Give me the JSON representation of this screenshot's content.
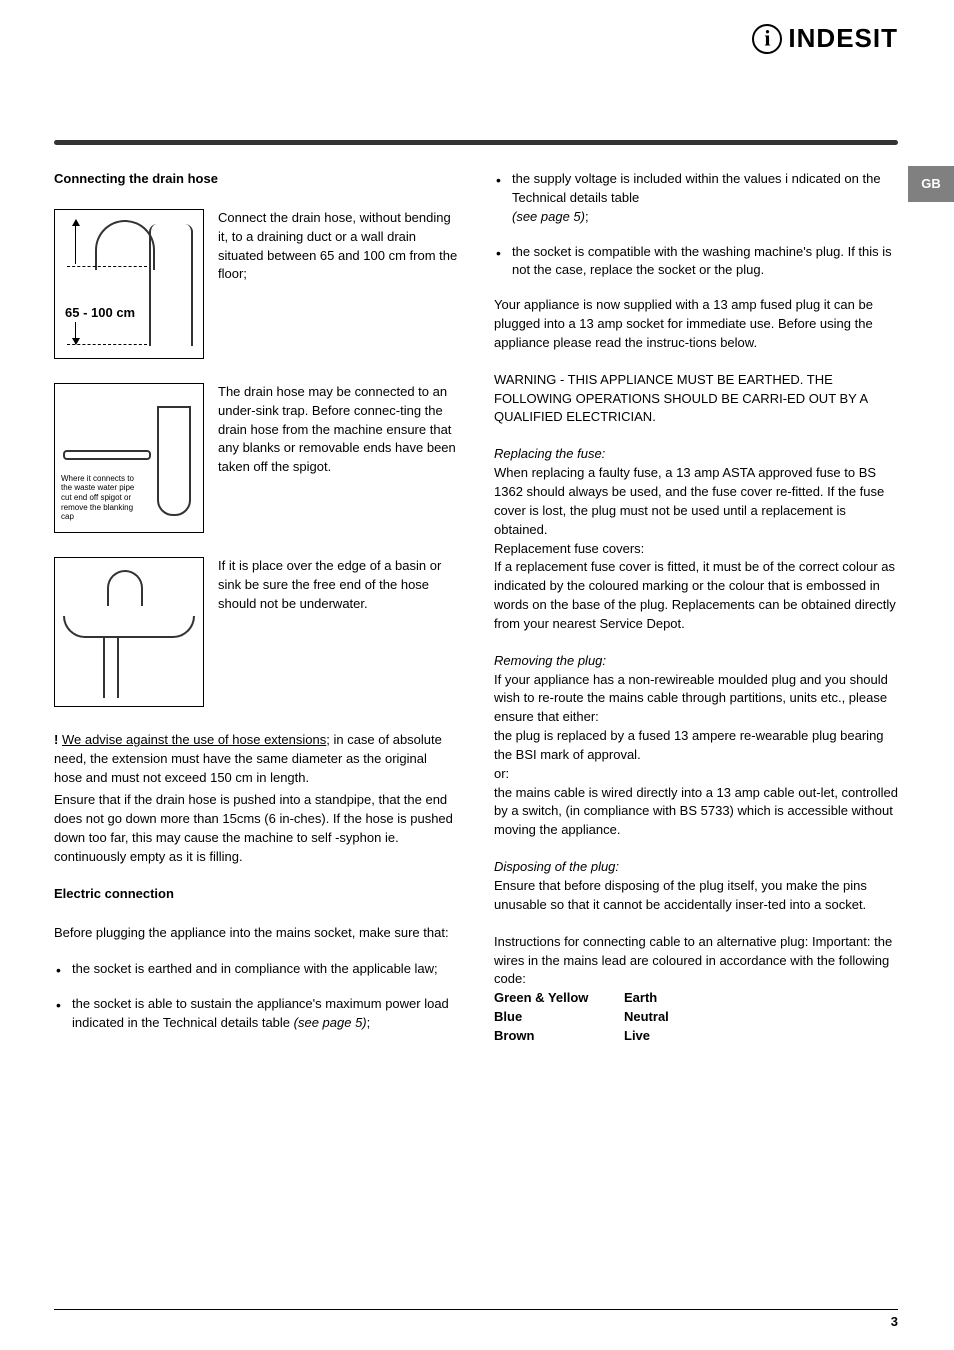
{
  "logo": {
    "text": "INDESIT"
  },
  "language_tab": "GB",
  "page_number": "3",
  "left": {
    "heading1": "Connecting the drain hose",
    "fig1_label": "65 - 100 cm",
    "para1": "Connect the drain hose, without bending it, to a draining duct or a wall drain situated between 65 and 100 cm from the floor;",
    "fig2_caption": "Where it connects to the waste water pipe cut end off spigot or remove the blanking cap",
    "para2": "The drain hose may be connected to an under-sink trap. Before connec-ting the drain hose from the machine ensure that any blanks or removable ends have been taken off the spigot.",
    "para3": "If it is place over the edge of a basin or sink be sure the free end of the hose should not be underwater.",
    "warn_prefix": "!",
    "warn_underlined": "We advise against the use of hose extensions",
    "warn_rest": "; in case of absolute need, the extension must have the same diameter as the original hose and must not exceed 150 cm in length.",
    "standpipe": "Ensure that if the drain hose is pushed into a standpipe, that the end does not go down more than 15cms (6 in-ches). If the hose is pushed down too far, this may cause the machine to self -syphon ie. continuously empty as it is filling.",
    "heading2": "Electric connection",
    "elec_intro": "Before plugging the appliance into the mains socket, make sure that:",
    "bullets": [
      "the socket is earthed and in compliance with the applicable law;",
      "the socket is able to sustain the appliance's maximum power load indicated in the Technical details table "
    ],
    "see_page_5": "(see page 5)",
    "semicolon": ";"
  },
  "right": {
    "bullets": [
      {
        "text": "the supply voltage is included within the values i ndicated on the Technical details table ",
        "ref": "(see page 5)",
        "tail": ";"
      },
      {
        "text": "the socket is compatible with the washing machine's plug. If this is not the case, replace the socket or the plug.",
        "ref": "",
        "tail": ""
      }
    ],
    "para1": "Your appliance is now supplied with a 13 amp fused plug it can be plugged into a 13 amp socket for immediate use. Before using the appliance please read the instruc-tions below.",
    "warning": "WARNING - THIS APPLIANCE MUST BE EARTHED. THE FOLLOWING OPERATIONS SHOULD  BE CARRI-ED OUT BY A QUALIFIED ELECTRICIAN.",
    "h_fuse": "Replacing the fuse:",
    "fuse_p1": "When replacing a faulty fuse, a 13 amp ASTA approved fuse to BS 1362 should always be used, and the fuse cover re-fitted. If the fuse cover is lost, the plug must not be used until a replacement is obtained.",
    "fuse_p2": "Replacement fuse covers:",
    "fuse_p3": "If a replacement fuse cover is fitted, it must be of the correct colour as indicated by the coloured marking or the colour that is embossed in words on the base of the plug. Replacements can be obtained directly from your nearest Service Depot.",
    "h_plug": "Removing the plug:",
    "plug_p1": "If your appliance has a non-rewireable moulded plug and you should wish to re-route the mains cable through partitions, units etc., please ensure that either:",
    "plug_p2": "the plug is replaced by a fused 13 ampere re-wearable plug bearing the BSI mark of approval.",
    "plug_or": "or:",
    "plug_p3": "the mains cable is wired directly into a 13 amp cable out-let, controlled by a switch, (in compliance with BS 5733) which is accessible without moving the appliance.",
    "h_disp": "Disposing of the plug:",
    "disp_p": "Ensure that before disposing of the plug itself, you make the pins unusable so that it cannot be accidentally inser-ted into a socket.",
    "alt_intro": "Instructions for connecting cable to an alternative plug: Important: the wires in the mains lead are coloured in accordance with the following code:",
    "wires": {
      "c1": "Green & Yellow",
      "v1": "Earth",
      "c2": "Blue",
      "v2": "Neutral",
      "c3": "Brown",
      "v3": "Live"
    }
  }
}
